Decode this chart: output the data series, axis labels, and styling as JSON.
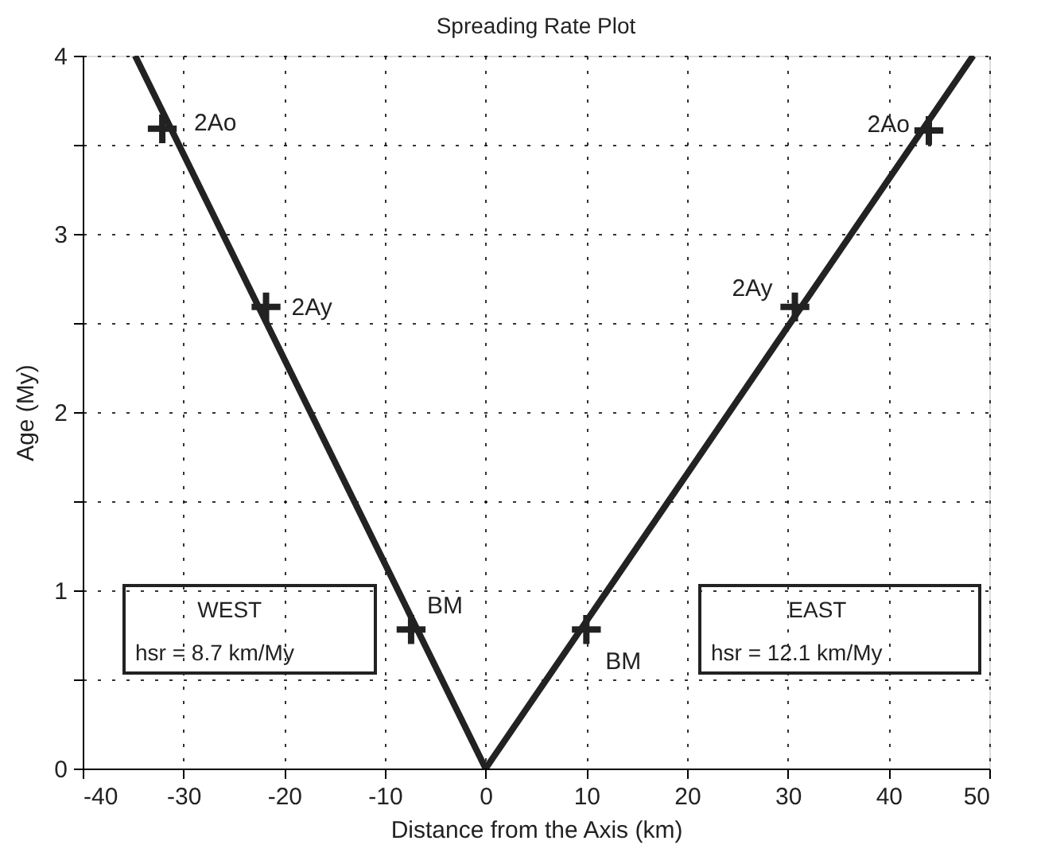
{
  "chart_data": {
    "type": "line",
    "title": "Spreading  Rate Plot",
    "xlabel": "Distance from the Axis (km)",
    "ylabel": "Age (My)",
    "xlim": [
      -40,
      50
    ],
    "xticks": [
      -40,
      -30,
      -20,
      -10,
      0,
      10,
      20,
      30,
      40,
      50
    ],
    "ylim": [
      0,
      4
    ],
    "yticks": [
      0,
      {
        "value": 0.5,
        "label": null
      },
      1,
      {
        "value": 1.5,
        "label": null
      },
      2,
      {
        "value": 2.5,
        "label": null
      },
      3,
      {
        "value": 3.5,
        "label": null
      },
      4
    ],
    "grid": true,
    "line_style": "solid",
    "series": [
      {
        "color": "#222222",
        "x": [
          0,
          -34.8
        ],
        "values": [
          0,
          4
        ],
        "marker": "none"
      },
      {
        "color": "#222222",
        "x": [
          0,
          48.4
        ],
        "values": [
          0,
          4
        ],
        "marker": "none"
      },
      {
        "type": "scatter",
        "color": "#222222",
        "x": [
          -32.1,
          -21.8,
          -7.4
        ],
        "values": [
          3.59,
          2.59,
          0.78
        ],
        "marker": "cross"
      },
      {
        "type": "scatter",
        "color": "#222222",
        "x": [
          10.0,
          30.7,
          44.0
        ],
        "values": [
          0.78,
          2.59,
          3.58
        ],
        "marker": "cross"
      }
    ],
    "annotations": [
      {
        "text": "2Ao",
        "x": -32.1,
        "y": 3.59
      },
      {
        "text": "2Ay",
        "x": -21.8,
        "y": 2.59
      },
      {
        "text": "BM",
        "x": -7.4,
        "y": 0.78
      },
      {
        "text": "BM",
        "x": 10.0,
        "y": 0.78
      },
      {
        "text": "2Ay",
        "x": 30.7,
        "y": 2.59
      },
      {
        "text": "2Ao",
        "x": 44.0,
        "y": 3.58
      },
      "WEST\nhsr = 8.7 km/My",
      "EAST\nhsr = 12.1 km/My"
    ]
  }
}
